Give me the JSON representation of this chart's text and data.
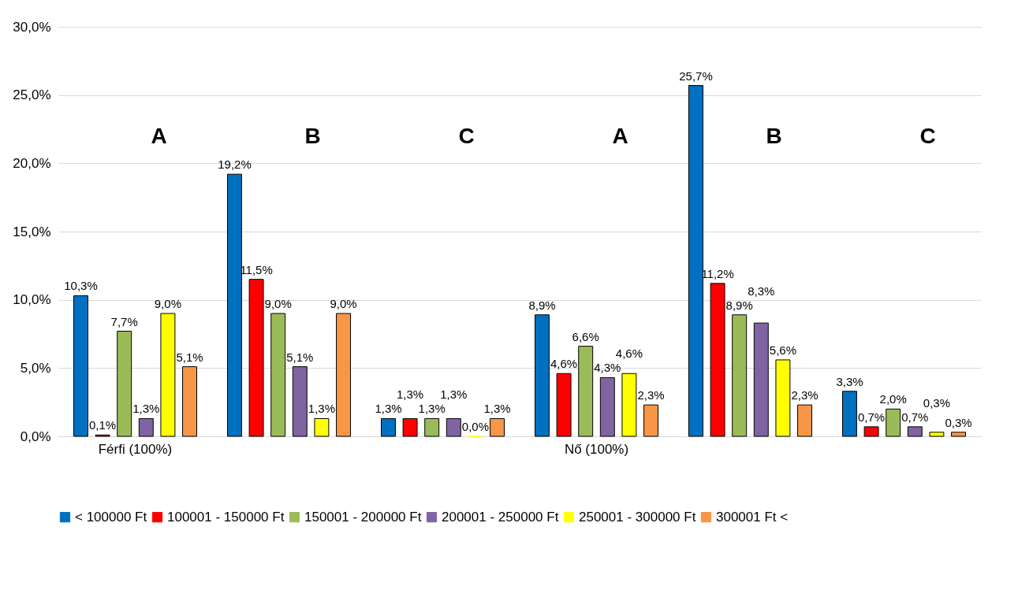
{
  "chart_data": {
    "type": "bar",
    "categories": [
      "Férfi (100%)",
      null,
      null,
      "Nő (100%)",
      null,
      null
    ],
    "series": [
      {
        "name": "< 100000 Ft",
        "color": "#0070c0",
        "values": [
          10.3,
          19.2,
          1.3,
          8.9,
          25.7,
          3.3
        ],
        "value_labels": [
          "10,3%",
          "19,2%",
          "1,3%",
          "8,9%",
          "25,7%",
          "3,3%"
        ]
      },
      {
        "name": "100001 - 150000 Ft",
        "color": "#ff0000",
        "values": [
          0.1,
          11.5,
          1.3,
          4.6,
          11.2,
          0.7
        ],
        "value_labels": [
          "0,1%",
          "11,5%",
          "1,3%",
          "4,6%",
          "11,2%",
          "0,7%"
        ]
      },
      {
        "name": "150001 - 200000 Ft",
        "color": "#9bbb59",
        "values": [
          7.7,
          9.0,
          1.3,
          6.6,
          8.9,
          2.0
        ],
        "value_labels": [
          "7,7%",
          "9,0%",
          "1,3%",
          "6,6%",
          "8,9%",
          "2,0%"
        ]
      },
      {
        "name": "200001 - 250000 Ft",
        "color": "#8064a2",
        "values": [
          1.3,
          5.1,
          1.3,
          4.3,
          8.3,
          0.7
        ],
        "value_labels": [
          "1,3%",
          "5,1%",
          "1,3%",
          "4,3%",
          "8,3%",
          "0,7%"
        ]
      },
      {
        "name": "250001 - 300000 Ft",
        "color": "#ffff00",
        "values": [
          9.0,
          1.3,
          0.0,
          4.6,
          5.6,
          0.3
        ],
        "value_labels": [
          "9,0%",
          "1,3%",
          "0,0%",
          "4,6%",
          "5,6%",
          "0,3%"
        ]
      },
      {
        "name": "300001 Ft <",
        "color": "#f79646",
        "values": [
          5.1,
          9.0,
          1.3,
          2.3,
          2.3,
          0.3
        ],
        "value_labels": [
          "5,1%",
          "9,0%",
          "1,3%",
          "2,3%",
          "2,3%",
          "0,3%"
        ]
      }
    ],
    "ylim": [
      0,
      30
    ],
    "yticks": [
      {
        "value": 0,
        "label": "0,0%"
      },
      {
        "value": 5,
        "label": "5,0%"
      },
      {
        "value": 10,
        "label": "10,0%"
      },
      {
        "value": 15,
        "label": "15,0%"
      },
      {
        "value": 20,
        "label": "20,0%"
      },
      {
        "value": 25,
        "label": "25,0%"
      },
      {
        "value": 30,
        "label": "30,0%"
      }
    ],
    "annotations": [
      "A",
      "B",
      "C",
      "A",
      "B",
      "C"
    ],
    "grid": "y",
    "legend": "bottom"
  }
}
